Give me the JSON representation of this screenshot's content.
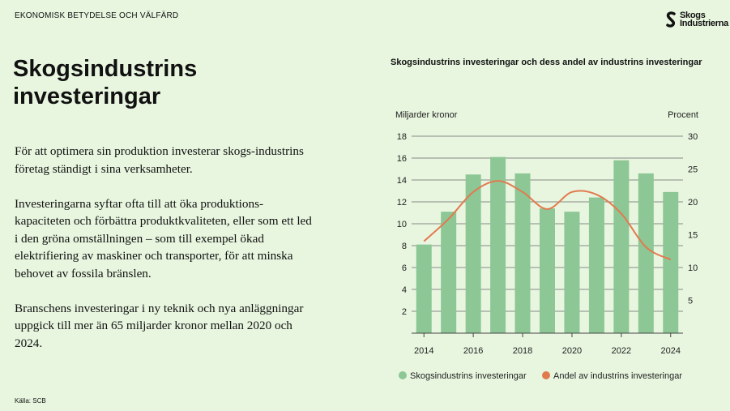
{
  "header": {
    "section": "EKONOMISK BETYDELSE OCH VÄLFÄRD",
    "logo_text": [
      "Skogs",
      "Industrierna"
    ]
  },
  "title": "Skogsindustrins investeringar",
  "paragraphs": [
    "För att optimera sin produktion investerar skogs-industrins företag ständigt i sina verksamheter.",
    "Investeringarna syftar ofta till att öka produktions-kapaciteten och förbättra produktkvaliteten, eller som ett led i den gröna omställningen – som till exempel ökad elektrifiering av maskiner och transporter, för att minska behovet av fossila bränslen.",
    "Branschens investeringar i ny teknik och nya anläggningar uppgick till mer än 65 miljarder kronor mellan 2020 och 2024."
  ],
  "source": "Källa: SCB",
  "chart_data": {
    "type": "bar",
    "title": "Skogsindustrins investeringar och dess andel av industrins investeringar",
    "ylabel": "Miljarder kronor",
    "y2label": "Procent",
    "ylim": [
      0,
      18
    ],
    "y2lim": [
      0,
      30
    ],
    "yticks": [
      2,
      4,
      6,
      8,
      10,
      12,
      14,
      16,
      18
    ],
    "y2ticks": [
      5,
      10,
      15,
      20,
      25,
      30
    ],
    "xticks": [
      "2014",
      "2016",
      "2018",
      "2020",
      "2022",
      "2024"
    ],
    "categories": [
      "2014",
      "2015",
      "2016",
      "2017",
      "2018",
      "2019",
      "2020",
      "2021",
      "2022",
      "2023",
      "2024"
    ],
    "grid": true,
    "legend_placement": "bottom",
    "series": [
      {
        "name": "Skogsindustrins investeringar",
        "type": "bar",
        "axis": "left",
        "color": "#8cc795",
        "values": [
          8.1,
          11.1,
          14.5,
          16.1,
          14.6,
          11.4,
          11.1,
          12.4,
          15.8,
          14.6,
          12.9
        ]
      },
      {
        "name": "Andel av industrins investeringar",
        "type": "line",
        "axis": "right",
        "color": "#e27a4f",
        "values": [
          14.0,
          17.4,
          21.5,
          23.2,
          21.5,
          18.9,
          21.5,
          21.1,
          18.2,
          13.1,
          11.2
        ]
      }
    ]
  }
}
